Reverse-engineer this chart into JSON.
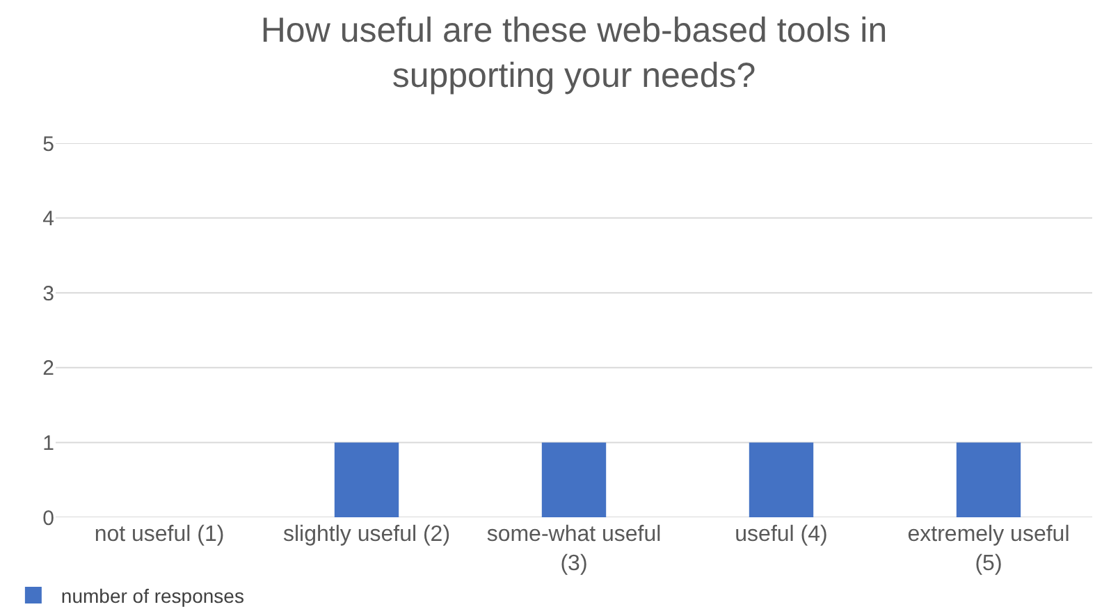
{
  "chart_data": {
    "type": "bar",
    "title": "How useful are these web-based tools in supporting your needs?",
    "categories": [
      "not useful (1)",
      "slightly useful (2)",
      "some-what useful (3)",
      "useful (4)",
      "extremely useful (5)"
    ],
    "series": [
      {
        "name": "number of responses",
        "color": "#4472c4",
        "values": [
          0,
          1,
          1,
          1,
          1
        ]
      }
    ],
    "ylim": [
      0,
      5
    ],
    "yticks": [
      0,
      1,
      2,
      3,
      4,
      5
    ],
    "grid": "y",
    "legend": "bottom left"
  }
}
